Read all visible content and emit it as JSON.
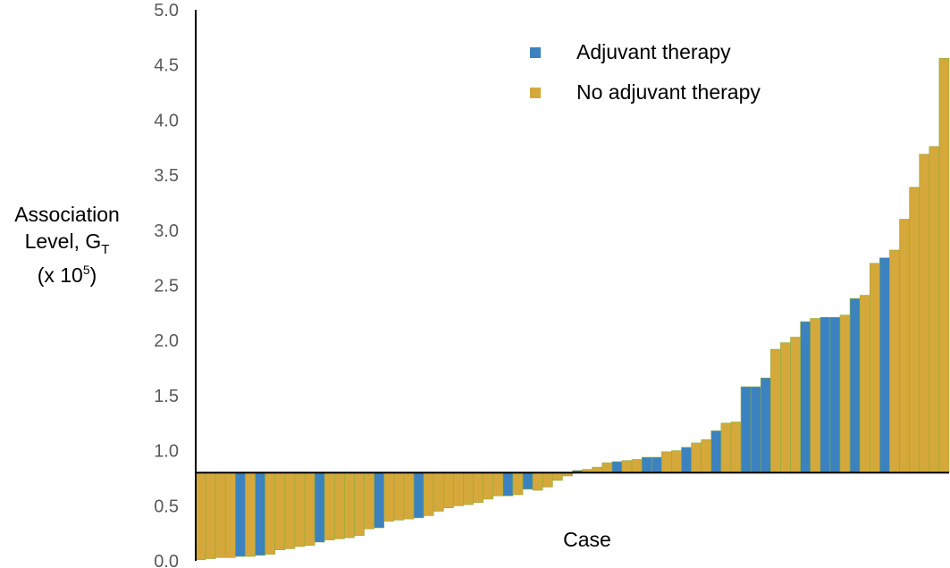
{
  "chart_data": {
    "type": "bar",
    "ylabel_lines": [
      "Association",
      "Level, G",
      "(x 10"
    ],
    "ylabel_subscript": "T",
    "ylabel_superscript": "5",
    "ylabel_close": ")",
    "xlabel": "Case",
    "ylim": [
      0,
      5
    ],
    "y_ticks": [
      "0.0",
      "0.5",
      "1.0",
      "1.5",
      "2.0",
      "2.5",
      "3.0",
      "3.5",
      "4.0",
      "4.5",
      "5.0"
    ],
    "baseline": 0.8,
    "colors": {
      "adjuvant": "#3b82be",
      "no_adjuvant": "#d4a83a",
      "outline": "#8fae3c"
    },
    "series": [
      {
        "name": "Adjuvant therapy",
        "key": "adjuvant"
      },
      {
        "name": "No adjuvant therapy",
        "key": "no_adjuvant"
      }
    ],
    "cases": [
      {
        "value": 0.01,
        "group": "no_adjuvant"
      },
      {
        "value": 0.02,
        "group": "no_adjuvant"
      },
      {
        "value": 0.03,
        "group": "no_adjuvant"
      },
      {
        "value": 0.03,
        "group": "no_adjuvant"
      },
      {
        "value": 0.04,
        "group": "adjuvant"
      },
      {
        "value": 0.04,
        "group": "no_adjuvant"
      },
      {
        "value": 0.05,
        "group": "adjuvant"
      },
      {
        "value": 0.06,
        "group": "no_adjuvant"
      },
      {
        "value": 0.1,
        "group": "no_adjuvant"
      },
      {
        "value": 0.11,
        "group": "no_adjuvant"
      },
      {
        "value": 0.13,
        "group": "no_adjuvant"
      },
      {
        "value": 0.14,
        "group": "no_adjuvant"
      },
      {
        "value": 0.17,
        "group": "adjuvant"
      },
      {
        "value": 0.19,
        "group": "no_adjuvant"
      },
      {
        "value": 0.2,
        "group": "no_adjuvant"
      },
      {
        "value": 0.21,
        "group": "no_adjuvant"
      },
      {
        "value": 0.23,
        "group": "no_adjuvant"
      },
      {
        "value": 0.29,
        "group": "no_adjuvant"
      },
      {
        "value": 0.3,
        "group": "adjuvant"
      },
      {
        "value": 0.36,
        "group": "no_adjuvant"
      },
      {
        "value": 0.37,
        "group": "no_adjuvant"
      },
      {
        "value": 0.38,
        "group": "no_adjuvant"
      },
      {
        "value": 0.39,
        "group": "adjuvant"
      },
      {
        "value": 0.41,
        "group": "no_adjuvant"
      },
      {
        "value": 0.45,
        "group": "no_adjuvant"
      },
      {
        "value": 0.48,
        "group": "no_adjuvant"
      },
      {
        "value": 0.5,
        "group": "no_adjuvant"
      },
      {
        "value": 0.51,
        "group": "no_adjuvant"
      },
      {
        "value": 0.53,
        "group": "no_adjuvant"
      },
      {
        "value": 0.56,
        "group": "no_adjuvant"
      },
      {
        "value": 0.59,
        "group": "no_adjuvant"
      },
      {
        "value": 0.59,
        "group": "adjuvant"
      },
      {
        "value": 0.6,
        "group": "no_adjuvant"
      },
      {
        "value": 0.65,
        "group": "adjuvant"
      },
      {
        "value": 0.64,
        "group": "no_adjuvant"
      },
      {
        "value": 0.67,
        "group": "no_adjuvant"
      },
      {
        "value": 0.73,
        "group": "no_adjuvant"
      },
      {
        "value": 0.77,
        "group": "no_adjuvant"
      },
      {
        "value": 0.82,
        "group": "adjuvant"
      },
      {
        "value": 0.83,
        "group": "no_adjuvant"
      },
      {
        "value": 0.85,
        "group": "no_adjuvant"
      },
      {
        "value": 0.89,
        "group": "no_adjuvant"
      },
      {
        "value": 0.9,
        "group": "adjuvant"
      },
      {
        "value": 0.91,
        "group": "no_adjuvant"
      },
      {
        "value": 0.92,
        "group": "no_adjuvant"
      },
      {
        "value": 0.94,
        "group": "adjuvant"
      },
      {
        "value": 0.94,
        "group": "adjuvant"
      },
      {
        "value": 0.99,
        "group": "no_adjuvant"
      },
      {
        "value": 1.0,
        "group": "no_adjuvant"
      },
      {
        "value": 1.03,
        "group": "adjuvant"
      },
      {
        "value": 1.07,
        "group": "no_adjuvant"
      },
      {
        "value": 1.1,
        "group": "no_adjuvant"
      },
      {
        "value": 1.18,
        "group": "adjuvant"
      },
      {
        "value": 1.25,
        "group": "no_adjuvant"
      },
      {
        "value": 1.26,
        "group": "no_adjuvant"
      },
      {
        "value": 1.58,
        "group": "adjuvant"
      },
      {
        "value": 1.58,
        "group": "adjuvant"
      },
      {
        "value": 1.66,
        "group": "adjuvant"
      },
      {
        "value": 1.92,
        "group": "no_adjuvant"
      },
      {
        "value": 1.98,
        "group": "no_adjuvant"
      },
      {
        "value": 2.03,
        "group": "no_adjuvant"
      },
      {
        "value": 2.17,
        "group": "adjuvant"
      },
      {
        "value": 2.2,
        "group": "no_adjuvant"
      },
      {
        "value": 2.21,
        "group": "adjuvant"
      },
      {
        "value": 2.21,
        "group": "adjuvant"
      },
      {
        "value": 2.23,
        "group": "no_adjuvant"
      },
      {
        "value": 2.38,
        "group": "adjuvant"
      },
      {
        "value": 2.41,
        "group": "no_adjuvant"
      },
      {
        "value": 2.7,
        "group": "no_adjuvant"
      },
      {
        "value": 2.75,
        "group": "adjuvant"
      },
      {
        "value": 2.82,
        "group": "no_adjuvant"
      },
      {
        "value": 3.1,
        "group": "no_adjuvant"
      },
      {
        "value": 3.39,
        "group": "no_adjuvant"
      },
      {
        "value": 3.69,
        "group": "no_adjuvant"
      },
      {
        "value": 3.76,
        "group": "no_adjuvant"
      },
      {
        "value": 4.56,
        "group": "no_adjuvant"
      }
    ]
  }
}
